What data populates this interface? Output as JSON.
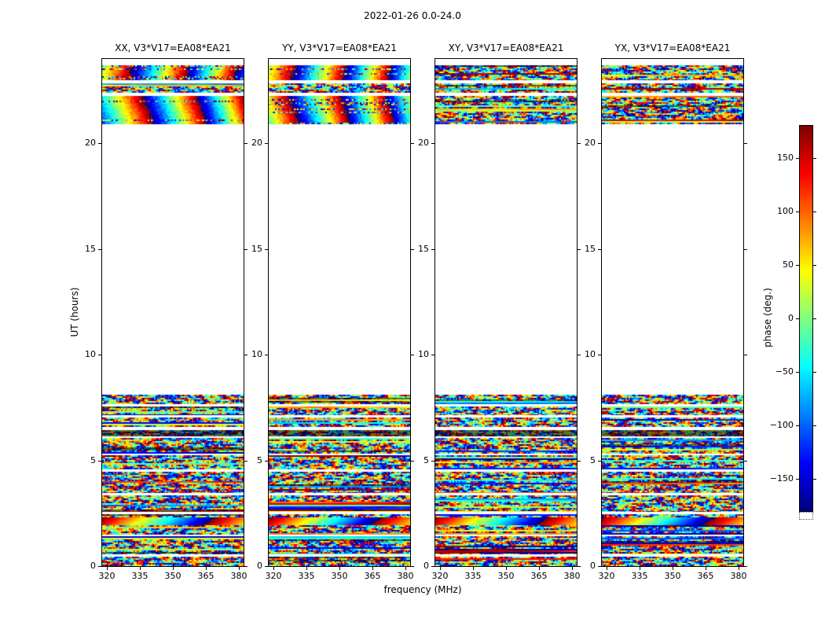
{
  "chart_data": {
    "type": "heatmap",
    "title": "2022-01-26 0.0-24.0",
    "xlabel": "frequency (MHz)",
    "ylabel": "UT (hours)",
    "value_label": "phase (deg.)",
    "colormap": "jet",
    "value_range": [
      -180,
      180
    ],
    "colorbar_ticks": [
      150,
      100,
      50,
      0,
      -50,
      -100,
      -150
    ],
    "xlim": [
      318,
      382
    ],
    "ylim": [
      0,
      24
    ],
    "x_ticks": [
      320,
      335,
      350,
      365,
      380
    ],
    "y_ticks": [
      0,
      5,
      10,
      15,
      20
    ],
    "panels": [
      {
        "pol": "XX",
        "label": "XX, V3*V17=EA08*EA21",
        "top_band_style": "smooth-phase-wrap"
      },
      {
        "pol": "YY",
        "label": "YY, V3*V17=EA08*EA21",
        "top_band_style": "smooth-phase-wrap"
      },
      {
        "pol": "XY",
        "label": "XY, V3*V17=EA08*EA21",
        "top_band_style": "noise"
      },
      {
        "pol": "YX",
        "label": "YX, V3*V17=EA08*EA21",
        "top_band_style": "noise"
      }
    ],
    "strata": [
      {
        "ut0": 0.0,
        "ut1": 0.45,
        "style": "speckle"
      },
      {
        "ut0": 0.45,
        "ut1": 0.55,
        "style": "gap"
      },
      {
        "ut0": 0.55,
        "ut1": 1.4,
        "style": "speckle"
      },
      {
        "ut0": 1.4,
        "ut1": 1.5,
        "style": "gap"
      },
      {
        "ut0": 1.5,
        "ut1": 1.95,
        "style": "speckle"
      },
      {
        "ut0": 1.95,
        "ut1": 2.3,
        "style": "smooth"
      },
      {
        "ut0": 2.3,
        "ut1": 2.45,
        "style": "speckle"
      },
      {
        "ut0": 2.45,
        "ut1": 2.58,
        "style": "gap"
      },
      {
        "ut0": 2.58,
        "ut1": 3.35,
        "style": "speckle"
      },
      {
        "ut0": 3.35,
        "ut1": 3.47,
        "style": "gap"
      },
      {
        "ut0": 3.47,
        "ut1": 4.45,
        "style": "speckle"
      },
      {
        "ut0": 4.45,
        "ut1": 4.57,
        "style": "gap"
      },
      {
        "ut0": 4.57,
        "ut1": 5.25,
        "style": "speckle"
      },
      {
        "ut0": 5.25,
        "ut1": 5.33,
        "style": "gap"
      },
      {
        "ut0": 5.33,
        "ut1": 6.05,
        "style": "speckle"
      },
      {
        "ut0": 6.05,
        "ut1": 6.15,
        "style": "gap"
      },
      {
        "ut0": 6.15,
        "ut1": 6.45,
        "style": "dark"
      },
      {
        "ut0": 6.45,
        "ut1": 6.6,
        "style": "gap"
      },
      {
        "ut0": 6.6,
        "ut1": 7.05,
        "style": "speckle"
      },
      {
        "ut0": 7.05,
        "ut1": 7.15,
        "style": "gap"
      },
      {
        "ut0": 7.15,
        "ut1": 7.55,
        "style": "speckle"
      },
      {
        "ut0": 7.55,
        "ut1": 7.67,
        "style": "gap"
      },
      {
        "ut0": 7.67,
        "ut1": 8.1,
        "style": "speckle"
      },
      {
        "ut0": 20.9,
        "ut1": 22.25,
        "style": "top"
      },
      {
        "ut0": 22.25,
        "ut1": 22.4,
        "style": "gap"
      },
      {
        "ut0": 22.4,
        "ut1": 22.85,
        "style": "speckle"
      },
      {
        "ut0": 22.85,
        "ut1": 23.0,
        "style": "gap"
      },
      {
        "ut0": 23.0,
        "ut1": 23.7,
        "style": "top"
      }
    ]
  }
}
